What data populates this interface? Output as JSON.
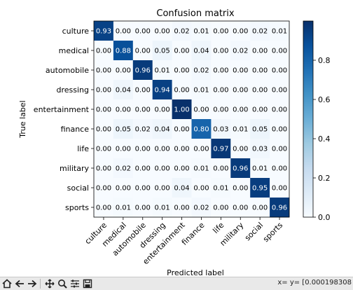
{
  "chart_data": {
    "type": "heatmap",
    "title": "Confusion matrix",
    "xlabel": "Predicted label",
    "ylabel": "True label",
    "categories": [
      "culture",
      "medical",
      "automobile",
      "dressing",
      "entertainment",
      "finance",
      "life",
      "military",
      "social",
      "sports"
    ],
    "matrix": [
      [
        "0.93",
        "0.00",
        "0.00",
        "0.00",
        "0.02",
        "0.01",
        "0.00",
        "0.00",
        "0.02",
        "0.01"
      ],
      [
        "0.00",
        "0.88",
        "0.00",
        "0.05",
        "0.00",
        "0.04",
        "0.00",
        "0.02",
        "0.00",
        "0.00"
      ],
      [
        "0.00",
        "0.00",
        "0.96",
        "0.01",
        "0.00",
        "0.02",
        "0.00",
        "0.00",
        "0.00",
        "0.00"
      ],
      [
        "0.00",
        "0.04",
        "0.00",
        "0.94",
        "0.00",
        "0.01",
        "0.00",
        "0.00",
        "0.00",
        "0.00"
      ],
      [
        "0.00",
        "0.00",
        "0.00",
        "0.00",
        "1.00",
        "0.00",
        "0.00",
        "0.00",
        "0.00",
        "0.00"
      ],
      [
        "0.00",
        "0.05",
        "0.02",
        "0.04",
        "0.00",
        "0.80",
        "0.03",
        "0.01",
        "0.05",
        "0.00"
      ],
      [
        "0.00",
        "0.00",
        "0.00",
        "0.00",
        "0.00",
        "0.00",
        "0.97",
        "0.00",
        "0.03",
        "0.00"
      ],
      [
        "0.00",
        "0.02",
        "0.00",
        "0.00",
        "0.00",
        "0.01",
        "0.00",
        "0.96",
        "0.01",
        "0.00"
      ],
      [
        "0.00",
        "0.00",
        "0.00",
        "0.00",
        "0.04",
        "0.00",
        "0.01",
        "0.00",
        "0.95",
        "0.00"
      ],
      [
        "0.00",
        "0.01",
        "0.00",
        "0.01",
        "0.00",
        "0.02",
        "0.00",
        "0.00",
        "0.00",
        "0.96"
      ]
    ],
    "colormap": "Blues",
    "color_range": [
      0,
      1
    ],
    "colorbar_ticks": [
      "0.0",
      "0.2",
      "0.4",
      "0.6",
      "0.8"
    ],
    "grid": false
  },
  "toolbar": {
    "icons": [
      "home-icon",
      "back-icon",
      "forward-icon",
      "pan-icon",
      "zoom-icon",
      "configure-subplots-icon",
      "save-icon"
    ],
    "coords": "x= y= [0.000198308"
  }
}
